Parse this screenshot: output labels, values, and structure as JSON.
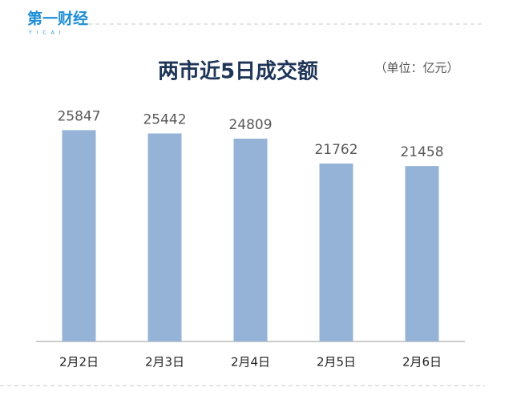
{
  "logo": {
    "text": "第一财经",
    "sub": "YICAI"
  },
  "chart_data": {
    "type": "bar",
    "title": "两市近5日成交额",
    "unit": "（单位：亿元）",
    "categories": [
      "2月2日",
      "2月3日",
      "2月4日",
      "2月5日",
      "2月6日"
    ],
    "values": [
      25847,
      25442,
      24809,
      21762,
      21458
    ],
    "color": "#95b3d7",
    "ylim": [
      0,
      30000
    ]
  }
}
